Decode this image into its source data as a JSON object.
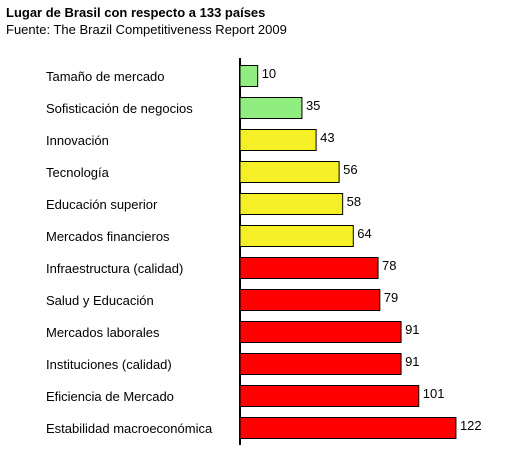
{
  "chart_data": {
    "type": "bar",
    "orientation": "horizontal",
    "title": "Lugar de Brasil con respecto a 133 países",
    "subtitle": "Fuente: The Brazil Competitiveness Report 2009",
    "categories": [
      "Tamaño de mercado",
      "Sofisticación de negocios",
      "Innovación",
      "Tecnología",
      "Educación superior",
      "Mercados financieros",
      "Infraestructura (calidad)",
      "Salud y Educación",
      "Mercados laborales",
      "Instituciones (calidad)",
      "Eficiencia de Mercado",
      "Estabilidad macroeconómica"
    ],
    "values": [
      10,
      35,
      43,
      56,
      58,
      64,
      78,
      79,
      91,
      91,
      101,
      122
    ],
    "bar_colors": [
      "#90ee80",
      "#90ee80",
      "#f5f026",
      "#f5f026",
      "#f5f026",
      "#f5f026",
      "#ff0000",
      "#ff0000",
      "#ff0000",
      "#ff0000",
      "#ff0000",
      "#ff0000"
    ],
    "xlim": [
      0,
      133
    ],
    "grid": false,
    "legend": "none"
  }
}
